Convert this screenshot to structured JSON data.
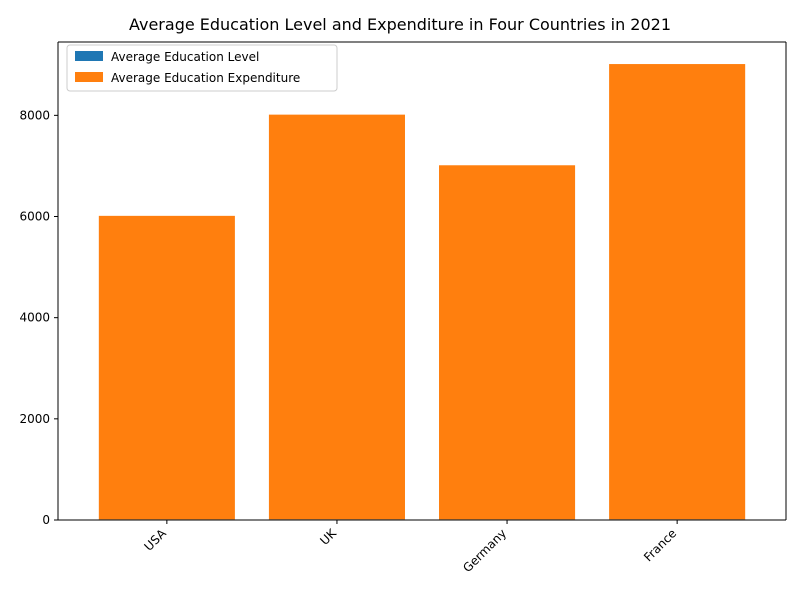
{
  "chart_data": {
    "type": "bar",
    "title": "Average Education Level and Expenditure in Four Countries in 2021",
    "xlabel": "",
    "ylabel": "",
    "categories": [
      "USA",
      "UK",
      "Germany",
      "France"
    ],
    "series": [
      {
        "name": "Average Education Level",
        "color": "#1f77b4",
        "values": [
          13,
          14,
          13,
          14
        ],
        "stack": "stacked-bottom"
      },
      {
        "name": "Average Education Expenditure",
        "color": "#ff7f0e",
        "values": [
          6000,
          8000,
          7000,
          9000
        ],
        "stack": "stacked-top"
      }
    ],
    "ylim": [
      0,
      9450
    ],
    "yticks": [
      0,
      2000,
      4000,
      6000,
      8000
    ],
    "legend": "top-left",
    "grid": false
  }
}
